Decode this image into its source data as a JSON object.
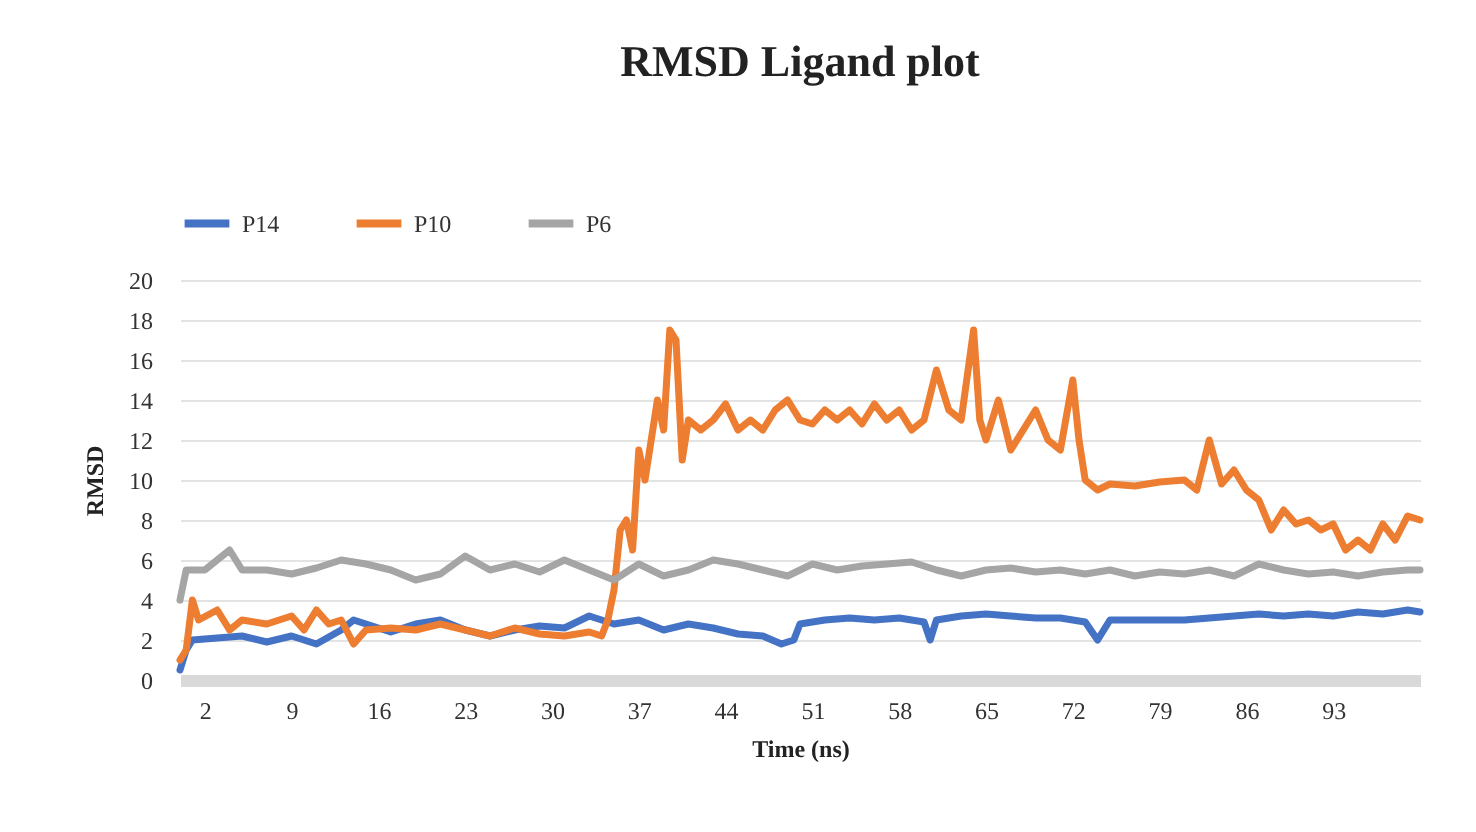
{
  "chart_data": {
    "type": "line",
    "title": "RMSD Ligand plot",
    "xlabel": "Time (ns)",
    "ylabel": "RMSD",
    "xlim": [
      0,
      100
    ],
    "xticks": [
      2,
      9,
      16,
      23,
      30,
      37,
      44,
      51,
      58,
      65,
      72,
      79,
      86,
      93
    ],
    "ylim": [
      0,
      20
    ],
    "yticks": [
      0,
      2,
      4,
      6,
      8,
      10,
      12,
      14,
      16,
      18,
      20
    ],
    "grid": "y",
    "legend": "top",
    "series": [
      {
        "name": "P14",
        "color": "#4472c4",
        "x": [
          0,
          0.5,
          1,
          3,
          5,
          7,
          9,
          11,
          13,
          14,
          15,
          17,
          19,
          21,
          23,
          25,
          27,
          29,
          31,
          33,
          35,
          37,
          39,
          41,
          43,
          45,
          47,
          48.5,
          49.5,
          50,
          52,
          54,
          56,
          58,
          60,
          60.5,
          61,
          63,
          65,
          67,
          69,
          71,
          73,
          74,
          75,
          77,
          79,
          81,
          83,
          85,
          87,
          89,
          91,
          93,
          95,
          97,
          99,
          100
        ],
        "values": [
          0.5,
          1.5,
          2,
          2.1,
          2.2,
          1.9,
          2.2,
          1.8,
          2.5,
          3,
          2.8,
          2.4,
          2.8,
          3,
          2.5,
          2.2,
          2.5,
          2.7,
          2.6,
          3.2,
          2.8,
          3,
          2.5,
          2.8,
          2.6,
          2.3,
          2.2,
          1.8,
          2,
          2.8,
          3,
          3.1,
          3,
          3.1,
          2.9,
          2,
          3,
          3.2,
          3.3,
          3.2,
          3.1,
          3.1,
          2.9,
          2,
          3,
          3,
          3,
          3,
          3.1,
          3.2,
          3.3,
          3.2,
          3.3,
          3.2,
          3.4,
          3.3,
          3.5,
          3.4
        ]
      },
      {
        "name": "P10",
        "color": "#ed7d31",
        "x": [
          0,
          0.5,
          1,
          1.5,
          3,
          4,
          5,
          7,
          9,
          10,
          11,
          12,
          13,
          14,
          15,
          17,
          19,
          21,
          23,
          25,
          27,
          29,
          31,
          33,
          34,
          34.5,
          35,
          35.5,
          36,
          36.5,
          37,
          37.5,
          38,
          38.5,
          39,
          39.5,
          40,
          40.5,
          41,
          42,
          43,
          44,
          45,
          46,
          47,
          48,
          49,
          50,
          51,
          52,
          53,
          54,
          55,
          56,
          57,
          58,
          59,
          60,
          61,
          62,
          63,
          64,
          64.5,
          65,
          66,
          67,
          68,
          69,
          70,
          71,
          72,
          72.5,
          73,
          74,
          75,
          77,
          79,
          81,
          82,
          83,
          84,
          85,
          86,
          87,
          88,
          89,
          90,
          91,
          92,
          93,
          94,
          95,
          96,
          97,
          98,
          99,
          100
        ],
        "values": [
          1,
          1.5,
          4,
          3,
          3.5,
          2.5,
          3,
          2.8,
          3.2,
          2.5,
          3.5,
          2.8,
          3,
          1.8,
          2.5,
          2.6,
          2.5,
          2.8,
          2.5,
          2.2,
          2.6,
          2.3,
          2.2,
          2.4,
          2.2,
          3,
          4.5,
          7.5,
          8,
          6.5,
          11.5,
          10,
          12,
          14,
          12.5,
          17.5,
          17,
          11,
          13,
          12.5,
          13,
          13.8,
          12.5,
          13,
          12.5,
          13.5,
          14,
          13,
          12.8,
          13.5,
          13,
          13.5,
          12.8,
          13.8,
          13,
          13.5,
          12.5,
          13,
          15.5,
          13.5,
          13,
          17.5,
          13,
          12,
          14,
          11.5,
          12.5,
          13.5,
          12,
          11.5,
          15,
          12,
          10,
          9.5,
          9.8,
          9.7,
          9.9,
          10,
          9.5,
          12,
          9.8,
          10.5,
          9.5,
          9,
          7.5,
          8.5,
          7.8,
          8,
          7.5,
          7.8,
          6.5,
          7,
          6.5,
          7.8,
          7,
          8.2,
          8
        ]
      },
      {
        "name": "P6",
        "color": "#a5a5a5",
        "x": [
          0,
          0.5,
          2,
          3,
          4,
          5,
          7,
          9,
          11,
          13,
          15,
          17,
          19,
          21,
          23,
          25,
          27,
          29,
          31,
          33,
          35,
          37,
          39,
          41,
          43,
          45,
          47,
          49,
          51,
          53,
          55,
          57,
          59,
          61,
          63,
          65,
          67,
          69,
          71,
          73,
          75,
          77,
          79,
          81,
          83,
          85,
          87,
          89,
          91,
          93,
          95,
          97,
          99,
          100
        ],
        "values": [
          4,
          5.5,
          5.5,
          6,
          6.5,
          5.5,
          5.5,
          5.3,
          5.6,
          6,
          5.8,
          5.5,
          5,
          5.3,
          6.2,
          5.5,
          5.8,
          5.4,
          6,
          5.5,
          5,
          5.8,
          5.2,
          5.5,
          6,
          5.8,
          5.5,
          5.2,
          5.8,
          5.5,
          5.7,
          5.8,
          5.9,
          5.5,
          5.2,
          5.5,
          5.6,
          5.4,
          5.5,
          5.3,
          5.5,
          5.2,
          5.4,
          5.3,
          5.5,
          5.2,
          5.8,
          5.5,
          5.3,
          5.4,
          5.2,
          5.4,
          5.5,
          5.5
        ]
      }
    ]
  }
}
